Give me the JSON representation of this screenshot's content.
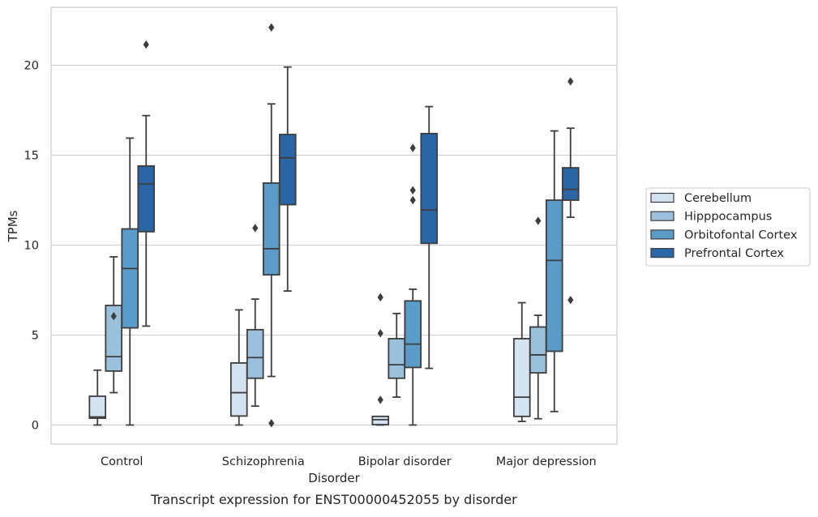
{
  "chart_data": {
    "type": "box",
    "caption": "Transcript expression for ENST00000452055 by disorder",
    "xlabel": "Disorder",
    "ylabel": "TPMs",
    "ylim": [
      -1.05,
      23.2
    ],
    "yticks": [
      0,
      5,
      10,
      15,
      20
    ],
    "grid": "horizontal",
    "legend_position": "right",
    "categories": [
      "Control",
      "Schizophrenia",
      "Bipolar disorder",
      "Major depression"
    ],
    "series": [
      {
        "name": "Cerebellum",
        "color": "#d4e3f2",
        "boxes": [
          {
            "whislo": 0.0,
            "q1": 0.38,
            "med": 0.45,
            "q3": 1.6,
            "whishi": 3.05,
            "fliers": []
          },
          {
            "whislo": 0.0,
            "q1": 0.5,
            "med": 1.8,
            "q3": 3.45,
            "whishi": 6.4,
            "fliers": []
          },
          {
            "whislo": 0.0,
            "q1": 0.02,
            "med": 0.3,
            "q3": 0.48,
            "whishi": 0.48,
            "fliers": [
              1.4,
              5.1,
              7.1
            ]
          },
          {
            "whislo": 0.2,
            "q1": 0.48,
            "med": 1.55,
            "q3": 4.8,
            "whishi": 6.8,
            "fliers": []
          }
        ]
      },
      {
        "name": "Hipppocampus",
        "color": "#9ac0db",
        "boxes": [
          {
            "whislo": 1.8,
            "q1": 3.0,
            "med": 3.8,
            "q3": 6.65,
            "whishi": 9.35,
            "fliers": [
              6.05
            ]
          },
          {
            "whislo": 1.05,
            "q1": 2.6,
            "med": 3.75,
            "q3": 5.3,
            "whishi": 7.0,
            "fliers": [
              10.95
            ]
          },
          {
            "whislo": 1.55,
            "q1": 2.6,
            "med": 3.35,
            "q3": 4.8,
            "whishi": 6.2,
            "fliers": []
          },
          {
            "whislo": 0.35,
            "q1": 2.9,
            "med": 3.9,
            "q3": 5.45,
            "whishi": 6.1,
            "fliers": [
              11.35
            ]
          }
        ]
      },
      {
        "name": "Orbitofontal Cortex",
        "color": "#5b9bc8",
        "boxes": [
          {
            "whislo": 0.0,
            "q1": 5.4,
            "med": 8.7,
            "q3": 10.9,
            "whishi": 15.95,
            "fliers": []
          },
          {
            "whislo": 2.7,
            "q1": 8.35,
            "med": 9.8,
            "q3": 13.45,
            "whishi": 17.85,
            "fliers": [
              0.1,
              22.1
            ]
          },
          {
            "whislo": 0.0,
            "q1": 3.2,
            "med": 4.5,
            "q3": 6.9,
            "whishi": 7.55,
            "fliers": [
              12.5,
              13.05,
              15.4
            ]
          },
          {
            "whislo": 0.75,
            "q1": 4.1,
            "med": 9.15,
            "q3": 12.5,
            "whishi": 16.35,
            "fliers": []
          }
        ]
      },
      {
        "name": "Prefrontal Cortex",
        "color": "#2a66a6",
        "boxes": [
          {
            "whislo": 5.5,
            "q1": 10.75,
            "med": 13.4,
            "q3": 14.4,
            "whishi": 17.2,
            "fliers": [
              21.15
            ]
          },
          {
            "whislo": 7.45,
            "q1": 12.25,
            "med": 14.85,
            "q3": 16.15,
            "whishi": 19.9,
            "fliers": []
          },
          {
            "whislo": 3.15,
            "q1": 10.1,
            "med": 11.95,
            "q3": 16.2,
            "whishi": 17.7,
            "fliers": []
          },
          {
            "whislo": 11.55,
            "q1": 12.5,
            "med": 13.1,
            "q3": 14.3,
            "whishi": 16.5,
            "fliers": [
              6.95,
              19.1
            ]
          }
        ]
      }
    ]
  }
}
